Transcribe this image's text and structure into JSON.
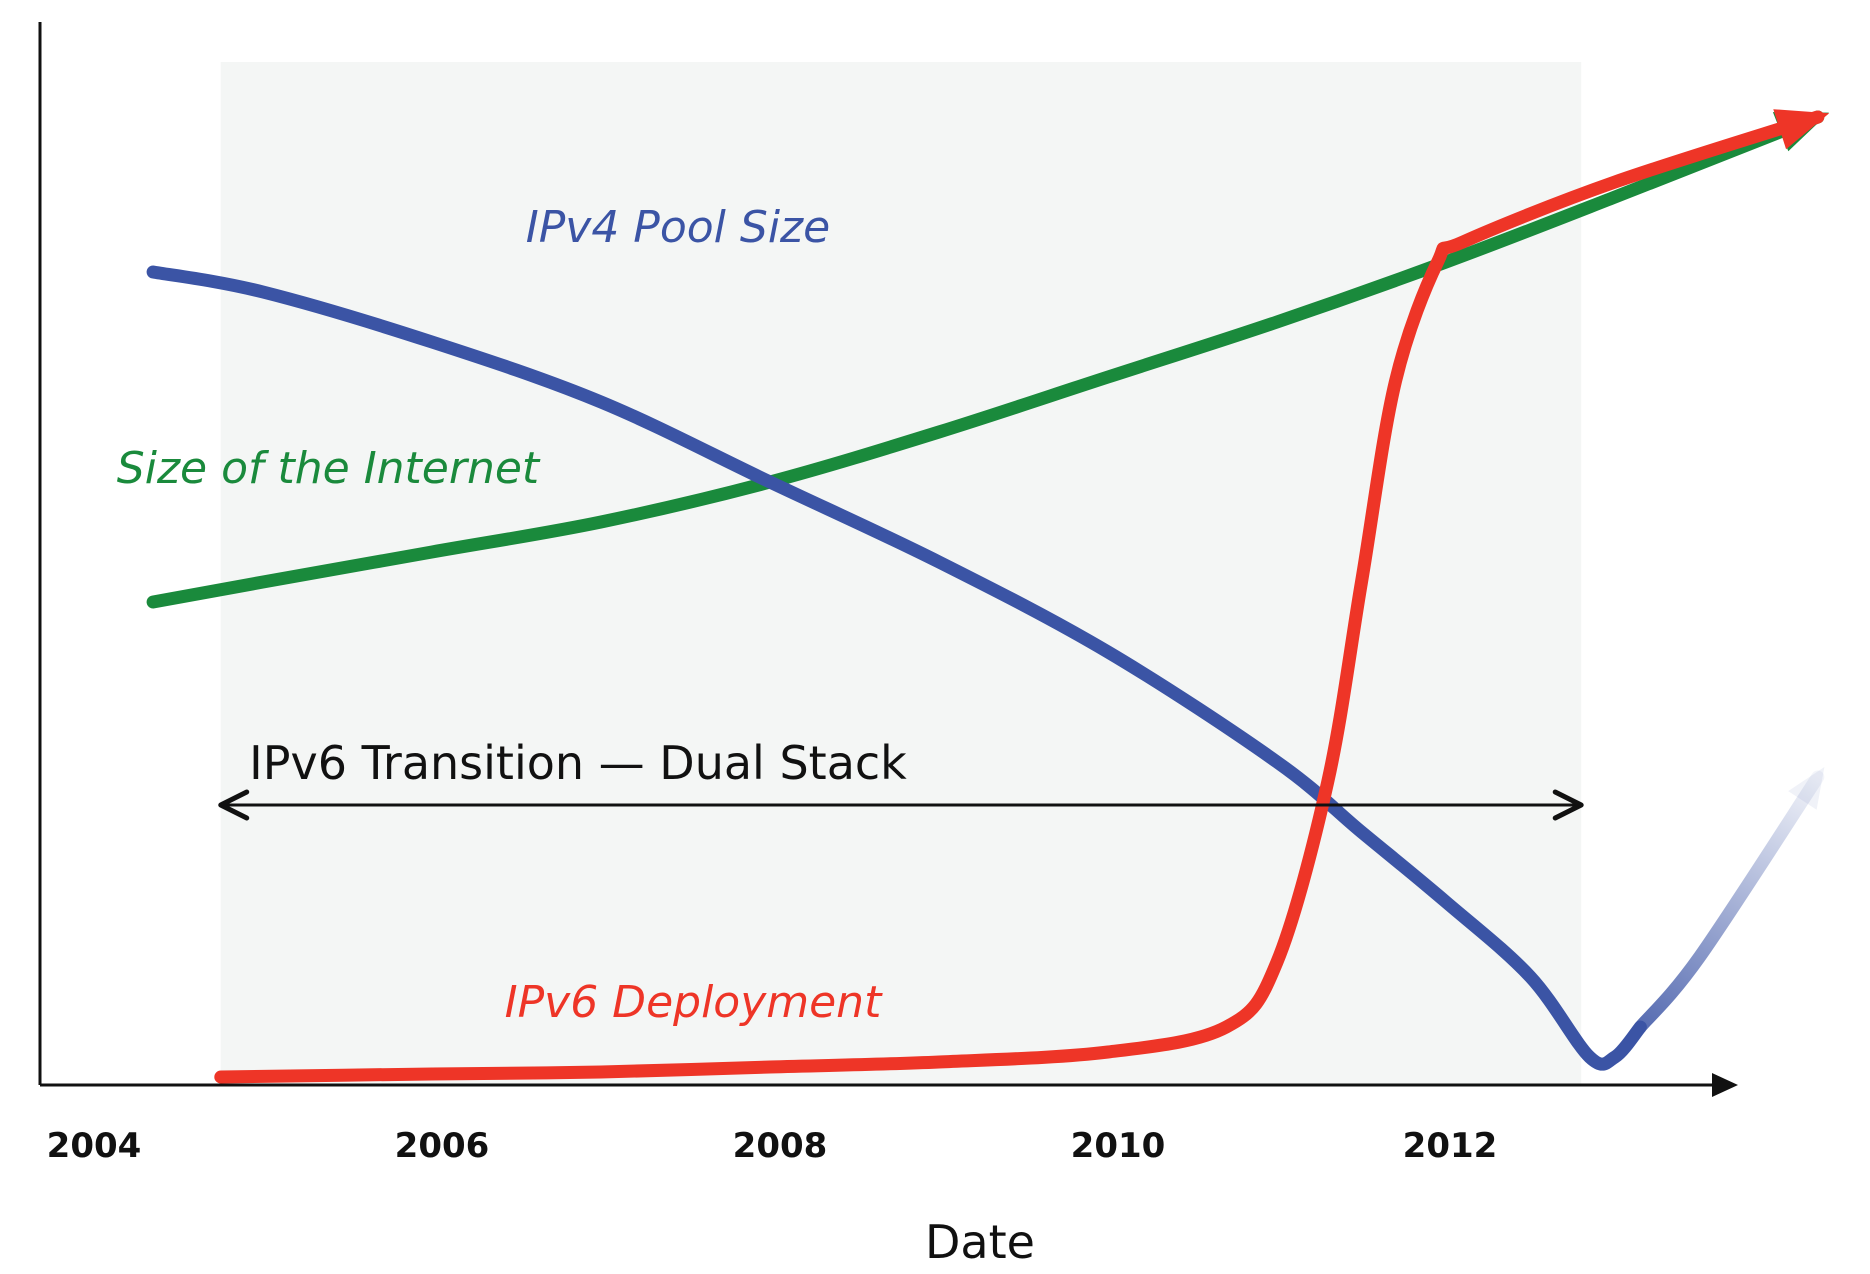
{
  "chart_data": {
    "type": "line",
    "xlabel": "Date",
    "ylabel": "",
    "x_ticks": [
      "2004",
      "2006",
      "2008",
      "2010",
      "2012"
    ],
    "xlim": [
      2004,
      2014
    ],
    "ylim": [
      0,
      100
    ],
    "grid": false,
    "shaded_region": {
      "from": 2004.75,
      "to": 2012.8
    },
    "annotation": {
      "text": "IPv6 Transition — Dual Stack",
      "from": 2004.75,
      "to": 2012.8
    },
    "series": [
      {
        "name": "IPv4 Pool Size",
        "color": "#3b54a5",
        "x": [
          2004.35,
          2005.0,
          2006.0,
          2007.0,
          2008.0,
          2009.0,
          2010.0,
          2011.0,
          2011.5,
          2012.0,
          2012.5,
          2012.85,
          2013.0,
          2013.15
        ],
        "y": [
          81.0,
          79.0,
          74.0,
          68.0,
          60.0,
          52.0,
          43.0,
          32.0,
          25.0,
          18.0,
          10.5,
          2.5,
          2.5,
          5.5
        ]
      },
      {
        "name": "IPv4 Pool Size (projected)",
        "color": "#3b54a5",
        "x": [
          2013.15,
          2013.5,
          2014.2
        ],
        "y": [
          5.5,
          12.5,
          30.5
        ]
      },
      {
        "name": "Size of the Internet",
        "color": "#1a8a3c",
        "x": [
          2004.35,
          2005.0,
          2006.0,
          2007.0,
          2008.0,
          2009.0,
          2010.0,
          2011.0,
          2012.0,
          2013.0,
          2014.2
        ],
        "y": [
          48.0,
          50.0,
          53.0,
          56.0,
          60.0,
          65.0,
          70.5,
          76.0,
          82.0,
          88.5,
          96.5
        ]
      },
      {
        "name": "IPv6 Deployment",
        "color": "#ee3527",
        "x": [
          2004.75,
          2006.0,
          2007.0,
          2008.0,
          2009.0,
          2010.0,
          2010.7,
          2011.0,
          2011.3,
          2011.5,
          2011.7,
          2011.95,
          2012.1,
          2013.0,
          2014.2
        ],
        "y": [
          0.5,
          0.8,
          1.0,
          1.5,
          2.0,
          3.0,
          5.5,
          12.0,
          30.0,
          50.0,
          70.0,
          82.0,
          84.0,
          90.0,
          96.5
        ]
      }
    ],
    "labels": [
      {
        "text": "IPv4 Pool Size",
        "series": "IPv4 Pool Size"
      },
      {
        "text": "Size of the Internet",
        "series": "Size of the Internet"
      },
      {
        "text": "IPv6 Deployment",
        "series": "IPv6 Deployment"
      }
    ]
  }
}
